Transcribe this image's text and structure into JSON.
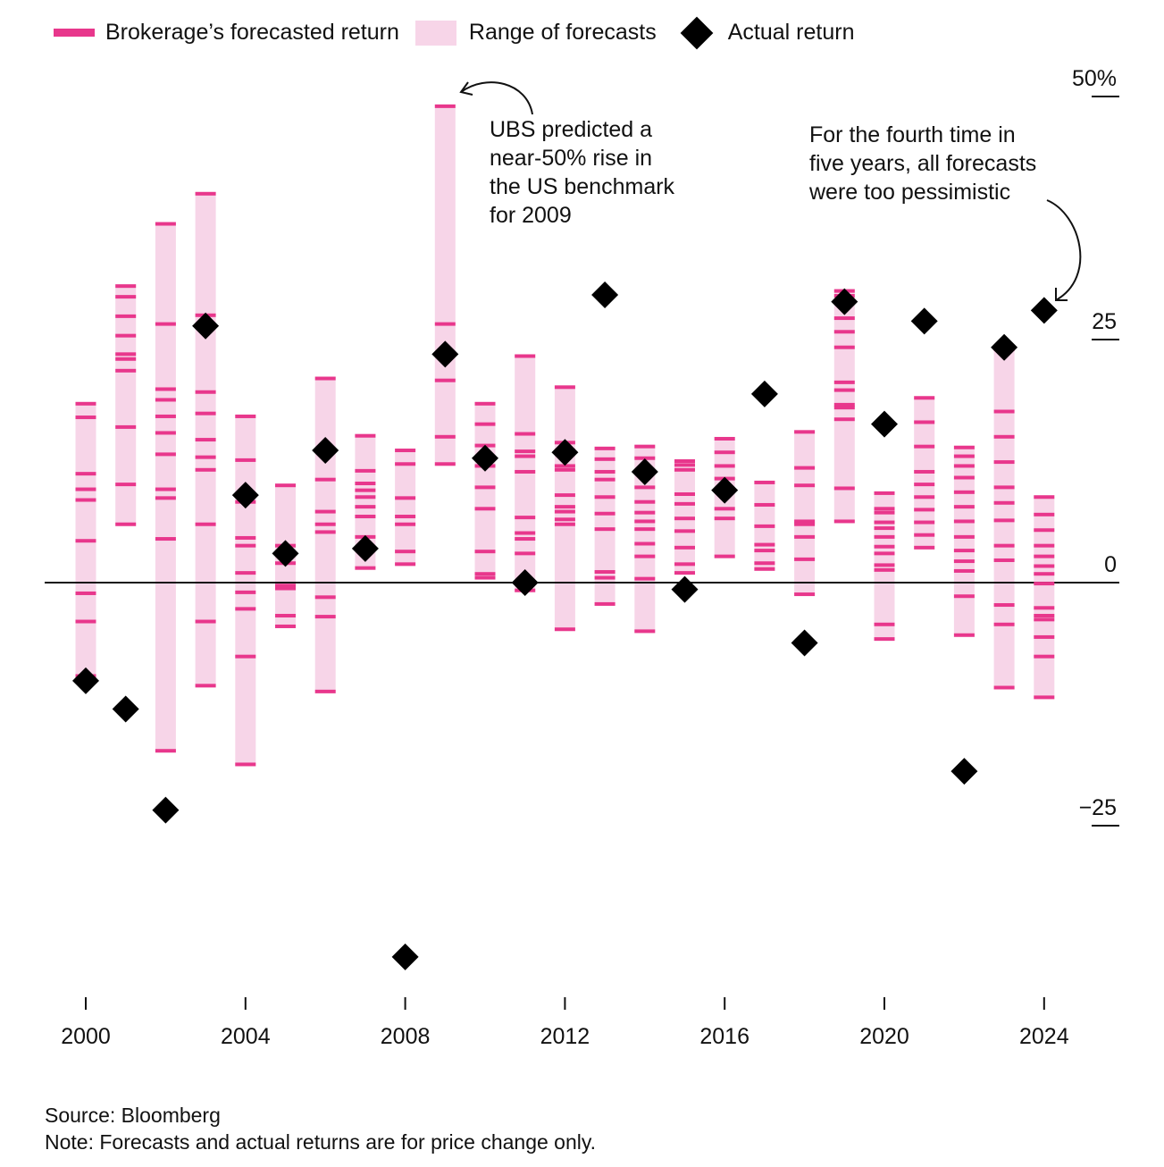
{
  "legend": {
    "forecast_label": "Brokerage’s forecasted return",
    "range_label": "Range of forecasts",
    "actual_label": "Actual return"
  },
  "annotations": {
    "ubs": [
      "UBS predicted a",
      "near-50% rise in",
      "the US benchmark",
      "for 2009"
    ],
    "pessimistic": [
      "For the fourth time in",
      "five years, all forecasts",
      "were too pessimistic"
    ]
  },
  "footer": {
    "source": "Source: Bloomberg",
    "note": "Note: Forecasts and actual returns are for price change only."
  },
  "colors": {
    "forecast": "#e8378c",
    "range": "#f7d5e8",
    "actual": "#000000"
  },
  "chart_data": {
    "type": "scatter",
    "title": "",
    "xlabel": "",
    "ylabel": "",
    "ylim": [
      -40,
      52
    ],
    "yticks": [
      {
        "v": 50,
        "label": "50%"
      },
      {
        "v": 25,
        "label": "25"
      },
      {
        "v": 0,
        "label": "0"
      },
      {
        "v": -25,
        "label": "−25"
      }
    ],
    "xticks": [
      2000,
      2004,
      2008,
      2012,
      2016,
      2020,
      2024
    ],
    "series": [
      {
        "year": 2000,
        "actual": -10.1,
        "forecasts": [
          18.4,
          17.0,
          11.2,
          9.6,
          8.5,
          4.3,
          -1.1,
          -4.0,
          -9.6
        ]
      },
      {
        "year": 2001,
        "actual": -13.0,
        "forecasts": [
          30.5,
          29.4,
          27.4,
          25.4,
          23.5,
          23.0,
          21.8,
          16.0,
          10.1,
          6.0
        ]
      },
      {
        "year": 2002,
        "actual": -23.4,
        "forecasts": [
          36.9,
          26.6,
          19.9,
          18.8,
          17.1,
          15.4,
          13.2,
          9.6,
          8.7,
          4.5,
          -17.3
        ]
      },
      {
        "year": 2003,
        "actual": 26.4,
        "forecasts": [
          40.0,
          27.5,
          19.6,
          17.4,
          14.7,
          12.9,
          11.6,
          6.0,
          -4.0,
          -10.6
        ]
      },
      {
        "year": 2004,
        "actual": 9.0,
        "forecasts": [
          17.1,
          12.6,
          8.3,
          4.6,
          3.8,
          1.0,
          -1.0,
          -2.7,
          -7.6,
          -18.7
        ]
      },
      {
        "year": 2005,
        "actual": 3.0,
        "forecasts": [
          10.0,
          3.8,
          2.0,
          -0.3,
          -0.6,
          -3.4,
          -4.5
        ]
      },
      {
        "year": 2006,
        "actual": 13.6,
        "forecasts": [
          21.0,
          10.6,
          7.3,
          6.0,
          5.2,
          -1.5,
          -3.5,
          -11.2
        ]
      },
      {
        "year": 2007,
        "actual": 3.5,
        "forecasts": [
          15.1,
          11.5,
          10.2,
          9.5,
          8.8,
          7.8,
          6.8,
          4.7,
          1.5
        ]
      },
      {
        "year": 2008,
        "actual": -38.5,
        "forecasts": [
          13.6,
          12.2,
          8.7,
          6.8,
          6.0,
          3.2,
          1.9
        ]
      },
      {
        "year": 2009,
        "actual": 23.5,
        "forecasts": [
          49.0,
          26.6,
          20.8,
          15.0,
          12.2
        ]
      },
      {
        "year": 2010,
        "actual": 12.8,
        "forecasts": [
          18.4,
          16.3,
          14.1,
          12.0,
          9.8,
          7.6,
          3.2,
          0.9,
          0.5
        ]
      },
      {
        "year": 2011,
        "actual": 0.0,
        "forecasts": [
          23.3,
          15.3,
          13.5,
          13.0,
          11.4,
          6.7,
          5.1,
          4.5,
          3.0,
          -0.8
        ]
      },
      {
        "year": 2012,
        "actual": 13.4,
        "forecasts": [
          20.1,
          14.4,
          13.6,
          12.0,
          11.6,
          9.0,
          7.8,
          7.3,
          6.5,
          6.0,
          -4.8
        ]
      },
      {
        "year": 2013,
        "actual": 29.6,
        "forecasts": [
          13.8,
          12.7,
          11.4,
          10.6,
          8.8,
          7.1,
          5.5,
          1.1,
          0.5,
          -2.2
        ]
      },
      {
        "year": 2014,
        "actual": 11.4,
        "forecasts": [
          14.0,
          12.8,
          9.8,
          8.3,
          7.2,
          6.3,
          5.5,
          4.0,
          2.7,
          0.4,
          -5.0
        ]
      },
      {
        "year": 2015,
        "actual": -0.7,
        "forecasts": [
          12.5,
          12.1,
          11.6,
          9.1,
          8.1,
          6.6,
          5.3,
          3.6,
          1.9,
          1.0
        ]
      },
      {
        "year": 2016,
        "actual": 9.5,
        "forecasts": [
          14.8,
          13.4,
          12.0,
          10.7,
          9.5,
          7.6,
          6.6,
          2.7
        ]
      },
      {
        "year": 2017,
        "actual": 19.4,
        "forecasts": [
          10.3,
          8.0,
          5.8,
          3.9,
          3.3,
          2.0,
          1.4
        ]
      },
      {
        "year": 2018,
        "actual": -6.2,
        "forecasts": [
          15.5,
          11.8,
          10.0,
          6.3,
          6.0,
          4.7,
          2.4,
          -1.2
        ]
      },
      {
        "year": 2019,
        "actual": 28.9,
        "forecasts": [
          30.0,
          29.5,
          27.2,
          25.8,
          24.2,
          20.6,
          19.8,
          18.3,
          18.0,
          16.8,
          9.7,
          6.3
        ]
      },
      {
        "year": 2020,
        "actual": 16.3,
        "forecasts": [
          9.2,
          7.6,
          7.2,
          6.2,
          5.6,
          4.7,
          3.7,
          3.0,
          1.8,
          1.3,
          -4.3,
          -5.8
        ]
      },
      {
        "year": 2021,
        "actual": 26.9,
        "forecasts": [
          19.0,
          16.5,
          14.0,
          11.4,
          10.1,
          8.8,
          7.5,
          6.2,
          4.9,
          3.6
        ]
      },
      {
        "year": 2022,
        "actual": -19.4,
        "forecasts": [
          13.9,
          13.0,
          12.0,
          10.8,
          9.3,
          7.8,
          6.3,
          4.7,
          3.3,
          2.2,
          1.2,
          -1.4,
          -5.4
        ]
      },
      {
        "year": 2023,
        "actual": 24.2,
        "forecasts": [
          24.0,
          17.6,
          15.0,
          12.4,
          9.8,
          8.2,
          6.4,
          3.8,
          2.3,
          -2.3,
          -4.3,
          -10.8
        ]
      },
      {
        "year": 2024,
        "actual": 28.0,
        "forecasts": [
          8.8,
          7.0,
          5.4,
          3.8,
          2.7,
          1.7,
          0.9,
          -0.1,
          -2.6,
          -3.4,
          -3.8,
          -5.6,
          -7.6,
          -11.8
        ]
      }
    ]
  }
}
